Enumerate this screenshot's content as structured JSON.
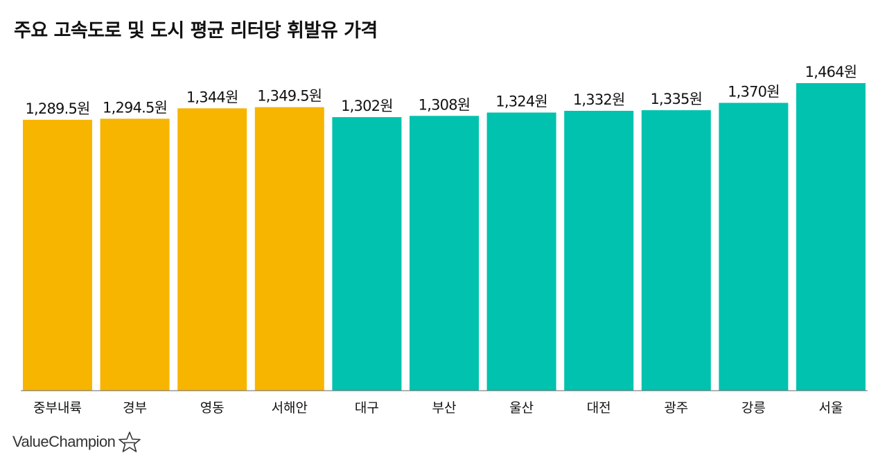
{
  "chart_data": {
    "type": "bar",
    "title": "주요 고속도로 및 도시 평균 리터당 휘발유 가격",
    "xlabel": "",
    "ylabel": "",
    "ylim": [
      0,
      1550
    ],
    "unit": "원",
    "categories": [
      "중부내륙",
      "경부",
      "영동",
      "서해안",
      "대구",
      "부산",
      "울산",
      "대전",
      "광주",
      "강릉",
      "서울"
    ],
    "values": [
      1289.5,
      1294.5,
      1344,
      1349.5,
      1302,
      1308,
      1324,
      1332,
      1335,
      1370,
      1464
    ],
    "value_labels": [
      "1,289.5원",
      "1,294.5원",
      "1,344원",
      "1,349.5원",
      "1,302원",
      "1,308원",
      "1,324원",
      "1,332원",
      "1,335원",
      "1,370원",
      "1,464원"
    ],
    "groups": [
      "highway",
      "highway",
      "highway",
      "highway",
      "city",
      "city",
      "city",
      "city",
      "city",
      "city",
      "city"
    ],
    "colors": {
      "highway": "#F7B500",
      "city": "#00C2AE"
    },
    "grid": false
  },
  "brand": {
    "name": "ValueChampion",
    "icon": "star-outline-icon"
  }
}
